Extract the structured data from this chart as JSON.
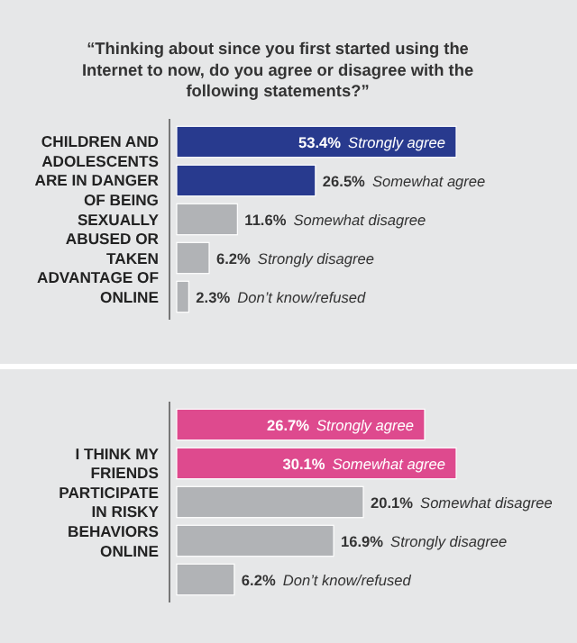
{
  "chart_data": [
    {
      "type": "bar",
      "orientation": "horizontal",
      "title": "“Thinking about since you first started using the Internet to now, do you agree or disagree with the following statements?”",
      "ylabel": "CHILDREN AND ADOLESCENTS ARE IN DANGER OF BEING SEXUALLY ABUSED OR TAKEN ADVANTAGE OF ONLINE",
      "categories": [
        "Strongly agree",
        "Somewhat agree",
        "Somewhat disagree",
        "Strongly disagree",
        "Don’t know/refused"
      ],
      "values": [
        53.4,
        26.5,
        11.6,
        6.2,
        2.3
      ],
      "value_labels": [
        "53.4%",
        "26.5%",
        "11.6%",
        "6.2%",
        "2.3%"
      ],
      "colors": [
        "#283a8e",
        "#283a8e",
        "#b1b3b6",
        "#b1b3b6",
        "#b1b3b6"
      ]
    },
    {
      "type": "bar",
      "orientation": "horizontal",
      "ylabel": "I THINK MY FRIENDS PARTICIPATE IN RISKY BEHAVIORS ONLINE",
      "categories": [
        "Strongly agree",
        "Somewhat agree",
        "Somewhat disagree",
        "Strongly disagree",
        "Don’t know/refused"
      ],
      "values": [
        26.7,
        30.1,
        20.1,
        16.9,
        6.2
      ],
      "value_labels": [
        "26.7%",
        "30.1%",
        "20.1%",
        "16.9%",
        "6.2%"
      ],
      "colors": [
        "#de4a8e",
        "#de4a8e",
        "#b1b3b6",
        "#b1b3b6",
        "#b1b3b6"
      ]
    }
  ]
}
